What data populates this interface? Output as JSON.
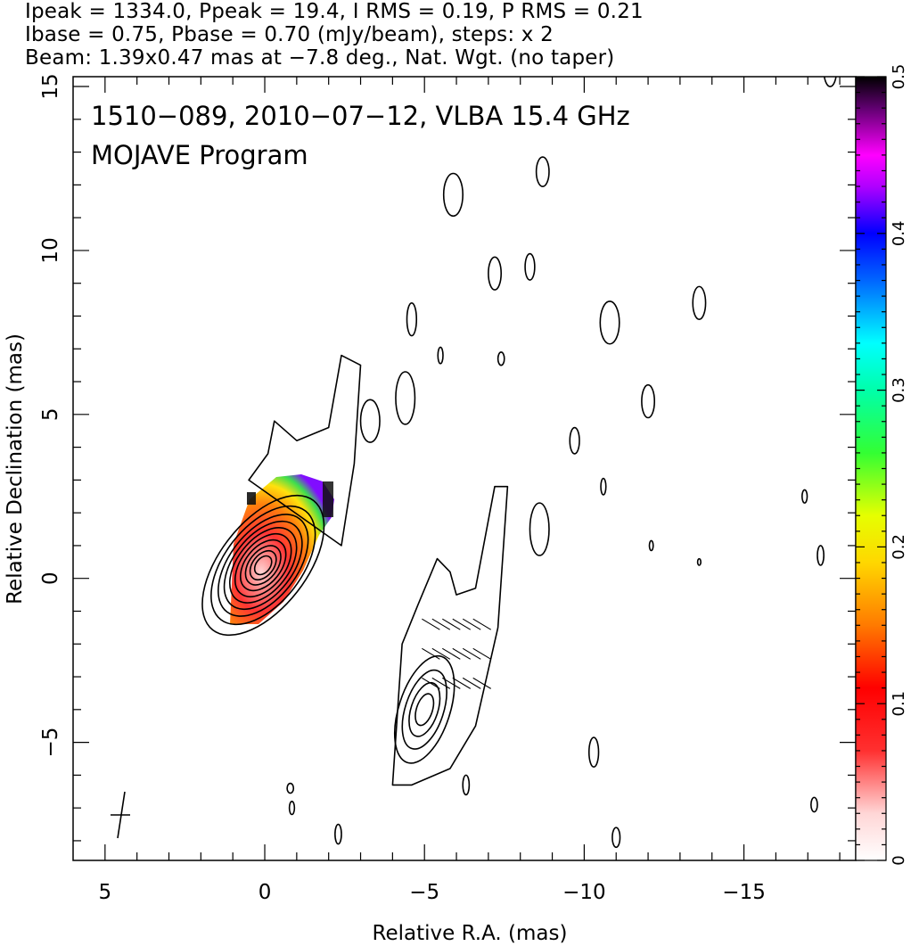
{
  "header": {
    "line1": "Ipeak = 1334.0, Ppeak = 19.4, I RMS = 0.19, P RMS = 0.21",
    "line2": "Ibase = 0.75, Pbase = 0.70 (mJy/beam), steps: x 2",
    "line3": "Beam: 1.39x0.47 mas at −7.8 deg., Nat. Wgt. (no taper)"
  },
  "chart_data": {
    "type": "contour",
    "title": "1510−089, 2010−07−12, VLBA 15.4 GHz",
    "subtitle": "MOJAVE Program",
    "xlabel": "Relative R.A. (mas)",
    "ylabel": "Relative Declination (mas)",
    "xlim": [
      6,
      -18.5
    ],
    "ylim": [
      -8.6,
      15.3
    ],
    "x_ticks": [
      5,
      0,
      -5,
      -10,
      -15
    ],
    "x_tick_labels": [
      "5",
      "0",
      "−5",
      "−10",
      "−15"
    ],
    "y_ticks": [
      15,
      10,
      5,
      0,
      -5
    ],
    "y_tick_labels": [
      "15",
      "10",
      "5",
      "0",
      "−5"
    ],
    "colorbar": {
      "range": [
        0,
        0.5
      ],
      "ticks": [
        0,
        0.1,
        0.2,
        0.3,
        0.4,
        0.5
      ],
      "tick_labels": [
        "0",
        "0.1",
        "0.2",
        "0.3",
        "0.4",
        "0.5"
      ]
    },
    "core_contours": {
      "center": [
        0.05,
        0.4
      ],
      "angle_deg": 38,
      "ellipses": [
        [
          1.35,
          2.5
        ],
        [
          1.2,
          2.1
        ],
        [
          1.05,
          1.8
        ],
        [
          0.92,
          1.55
        ],
        [
          0.8,
          1.32
        ],
        [
          0.68,
          1.1
        ],
        [
          0.56,
          0.88
        ],
        [
          0.44,
          0.68
        ],
        [
          0.33,
          0.5
        ],
        [
          0.22,
          0.32
        ]
      ]
    },
    "lobe_contours": {
      "center": [
        -5.0,
        -4.0
      ],
      "angle_deg": 18,
      "ellipses": [
        [
          0.8,
          1.7
        ],
        [
          0.6,
          1.25
        ],
        [
          0.42,
          0.85
        ],
        [
          0.25,
          0.5
        ]
      ]
    },
    "faint_contours": [
      [
        -5.9,
        11.7,
        0.3,
        0.65
      ],
      [
        -7.2,
        9.3,
        0.2,
        0.5
      ],
      [
        -8.3,
        9.5,
        0.15,
        0.4
      ],
      [
        -8.7,
        12.4,
        0.2,
        0.45
      ],
      [
        -10.8,
        7.8,
        0.3,
        0.65
      ],
      [
        -13.6,
        8.4,
        0.2,
        0.5
      ],
      [
        -12.0,
        5.4,
        0.2,
        0.5
      ],
      [
        -4.6,
        7.9,
        0.15,
        0.5
      ],
      [
        -5.5,
        6.8,
        0.08,
        0.25
      ],
      [
        -3.3,
        4.8,
        0.3,
        0.65
      ],
      [
        -4.4,
        5.5,
        0.3,
        0.8
      ],
      [
        -9.7,
        4.2,
        0.15,
        0.4
      ],
      [
        -8.6,
        1.5,
        0.3,
        0.8
      ],
      [
        -10.6,
        2.8,
        0.08,
        0.25
      ],
      [
        -12.1,
        1.0,
        0.06,
        0.15
      ],
      [
        -13.6,
        0.5,
        0.05,
        0.1
      ],
      [
        -17.4,
        0.7,
        0.1,
        0.3
      ],
      [
        -16.9,
        2.5,
        0.08,
        0.2
      ],
      [
        -17.7,
        15.5,
        0.2,
        0.5
      ],
      [
        -6.3,
        -6.3,
        0.1,
        0.3
      ],
      [
        -10.3,
        -5.3,
        0.15,
        0.45
      ],
      [
        -11.0,
        -7.9,
        0.12,
        0.3
      ],
      [
        -17.2,
        -6.9,
        0.1,
        0.22
      ],
      [
        -0.85,
        -7.0,
        0.08,
        0.2
      ],
      [
        -2.3,
        -7.8,
        0.1,
        0.3
      ],
      [
        -0.8,
        -6.4,
        0.1,
        0.15
      ],
      [
        -7.4,
        6.7,
        0.1,
        0.2
      ]
    ],
    "jet_ridge_contour": [
      [
        -2.4,
        1.0
      ],
      [
        -2.8,
        3.5
      ],
      [
        -3.0,
        6.5
      ],
      [
        -2.4,
        6.8
      ],
      [
        -2.0,
        4.6
      ],
      [
        -1.0,
        4.2
      ],
      [
        -0.3,
        4.8
      ],
      [
        -0.1,
        3.8
      ],
      [
        0.5,
        3.0
      ]
    ],
    "outer_jet_contour": [
      [
        -4.0,
        -6.3
      ],
      [
        -4.3,
        -2.0
      ],
      [
        -4.8,
        -0.8
      ],
      [
        -5.4,
        0.6
      ],
      [
        -5.8,
        0.2
      ],
      [
        -6.0,
        -0.5
      ],
      [
        -6.6,
        -0.3
      ],
      [
        -7.2,
        2.8
      ],
      [
        -7.6,
        2.8
      ],
      [
        -7.3,
        -1.5
      ],
      [
        -6.6,
        -4.5
      ],
      [
        -5.8,
        -5.8
      ],
      [
        -4.6,
        -6.3
      ]
    ]
  }
}
